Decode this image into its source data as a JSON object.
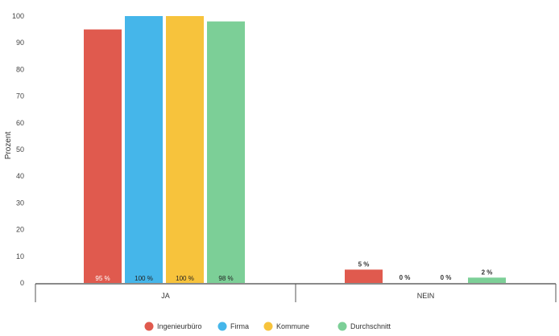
{
  "chart_data": {
    "type": "bar",
    "title": "",
    "xlabel": "",
    "ylabel": "Prozent",
    "ylim": [
      0,
      100
    ],
    "yticks": [
      0,
      10,
      20,
      30,
      40,
      50,
      60,
      70,
      80,
      90,
      100
    ],
    "grid": false,
    "legend_position": "bottom",
    "categories": [
      "JA",
      "NEIN"
    ],
    "series": [
      {
        "name": "Ingenieurbüro",
        "color": "#e05a4e",
        "values": [
          95,
          5
        ],
        "labels": [
          "95 %",
          "5 %"
        ]
      },
      {
        "name": "Firma",
        "color": "#45b6ea",
        "values": [
          100,
          0
        ],
        "labels": [
          "100 %",
          "0 %"
        ]
      },
      {
        "name": "Kommune",
        "color": "#f7c33c",
        "values": [
          100,
          0
        ],
        "labels": [
          "100 %",
          "0 %"
        ]
      },
      {
        "name": "Durchschnitt",
        "color": "#7ccf97",
        "values": [
          98,
          2
        ],
        "labels": [
          "98 %",
          "2 %"
        ]
      }
    ]
  }
}
